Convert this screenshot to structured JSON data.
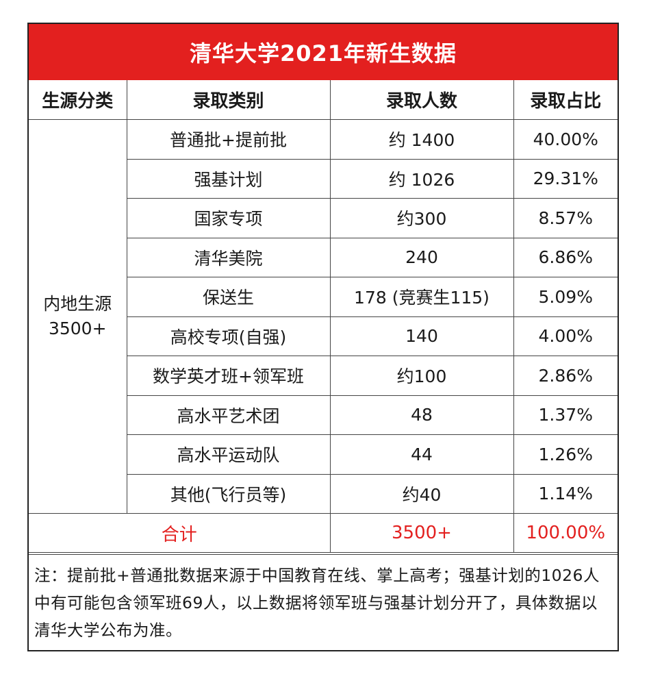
{
  "title": "清华大学2021年新生数据",
  "headers": [
    "生源分类",
    "录取类别",
    "录取人数",
    "录取占比"
  ],
  "group_label_line1": "内地生源",
  "group_label_line2": "3500+",
  "rows": [
    {
      "category": "普通批+提前批",
      "count": "约 1400",
      "ratio": "40.00%"
    },
    {
      "category": "强基计划",
      "count": "约 1026",
      "ratio": "29.31%"
    },
    {
      "category": "国家专项",
      "count": "约300",
      "ratio": "8.57%"
    },
    {
      "category": "清华美院",
      "count": "240",
      "ratio": "6.86%"
    },
    {
      "category": "保送生",
      "count": "178 (竞赛生115)",
      "ratio": "5.09%"
    },
    {
      "category": "高校专项(自强)",
      "count": "140",
      "ratio": "4.00%"
    },
    {
      "category": "数学英才班+领军班",
      "count": "约100",
      "ratio": "2.86%"
    },
    {
      "category": "高水平艺术团",
      "count": "48",
      "ratio": "1.37%"
    },
    {
      "category": "高水平运动队",
      "count": "44",
      "ratio": "1.26%"
    },
    {
      "category": "其他(飞行员等)",
      "count": "约40",
      "ratio": "1.14%"
    }
  ],
  "total": {
    "label": "合计",
    "count": "3500+",
    "ratio": "100.00%"
  },
  "note": "注：提前批+普通批数据来源于中国教育在线、掌上高考；强基计划的1026人中有可能包含领军班69人，以上数据将领军班与强基计划分开了，具体数据以清华大学公布为准。",
  "colors": {
    "title_bg": "#e3201f",
    "total_text": "#e3201f",
    "border": "#222222"
  }
}
